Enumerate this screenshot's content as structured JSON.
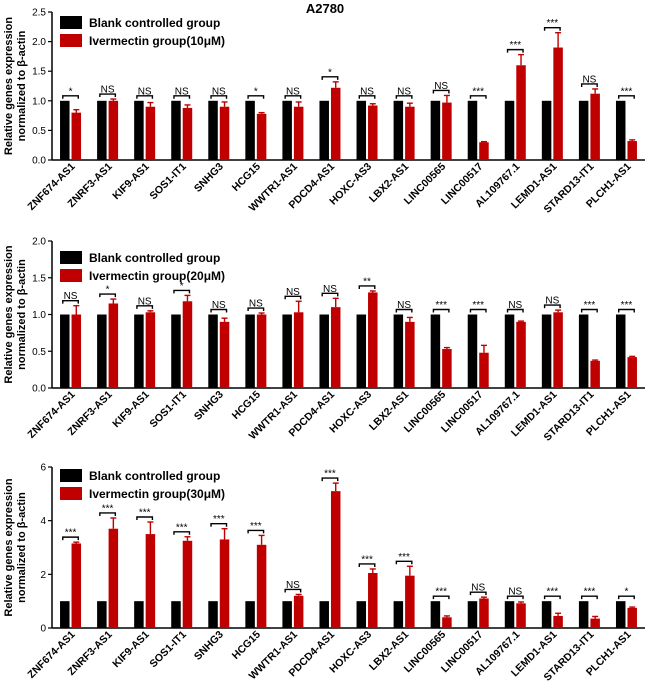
{
  "figure_title": "A2780",
  "colors": {
    "control": "#000000",
    "treated": "#c00000"
  },
  "chart_data": [
    {
      "type": "bar",
      "ylabel": [
        "Relative genes expression",
        "normalized to β-actin"
      ],
      "ylim": [
        0,
        2.5
      ],
      "yticks": [
        "0.0",
        "0.5",
        "1.0",
        "1.5",
        "2.0",
        "2.5"
      ],
      "ytick_values": [
        0,
        0.5,
        1.0,
        1.5,
        2.0,
        2.5
      ],
      "legend": "top-left",
      "categories": [
        "ZNF674-AS1",
        "ZNRF3-AS1",
        "KIF9-AS1",
        "SOS1-IT1",
        "SNHG3",
        "HCG15",
        "WWTR1-AS1",
        "PDCD4-AS1",
        "HOXC-AS3",
        "LBX2-AS1",
        "LINC00565",
        "LINC00517",
        "AL109767.1",
        "LEMD1-AS1",
        "STARD13-IT1",
        "PLCH1-AS1"
      ],
      "series": [
        {
          "name": "Blank controlled group",
          "values": [
            1,
            1,
            1,
            1,
            1,
            1,
            1,
            1,
            1,
            1,
            1,
            1,
            1,
            1,
            1,
            1
          ],
          "errors": [
            0,
            0,
            0,
            0,
            0,
            0,
            0,
            0,
            0,
            0,
            0,
            0,
            0,
            0,
            0,
            0
          ]
        },
        {
          "name": "Ivermectin group(10μM)",
          "values": [
            0.8,
            1.0,
            0.9,
            0.88,
            0.9,
            0.78,
            0.9,
            1.22,
            0.92,
            0.9,
            0.97,
            0.3,
            1.6,
            1.9,
            1.12,
            0.32
          ],
          "errors": [
            0.05,
            0.03,
            0.07,
            0.05,
            0.08,
            0.02,
            0.08,
            0.1,
            0.03,
            0.06,
            0.12,
            0.01,
            0.18,
            0.25,
            0.08,
            0.02
          ]
        }
      ],
      "significance": [
        "*",
        "NS",
        "NS",
        "NS",
        "NS",
        "*",
        "NS",
        "*",
        "NS",
        "NS",
        "NS",
        "***",
        "***",
        "***",
        "NS",
        "***"
      ]
    },
    {
      "type": "bar",
      "ylabel": [
        "Relative genes expression",
        "normalized to β-actin"
      ],
      "ylim": [
        0,
        2.0
      ],
      "yticks": [
        "0.0",
        "0.5",
        "1.0",
        "1.5",
        "2.0"
      ],
      "ytick_values": [
        0,
        0.5,
        1.0,
        1.5,
        2.0
      ],
      "legend": "top-left",
      "categories": [
        "ZNF674-AS1",
        "ZNRF3-AS1",
        "KIF9-AS1",
        "SOS1-IT1",
        "SNHG3",
        "HCG15",
        "WWTR1-AS1",
        "PDCD4-AS1",
        "HOXC-AS3",
        "LBX2-AS1",
        "LINC00565",
        "LINC00517",
        "AL109767.1",
        "LEMD1-AS1",
        "STARD13-IT1",
        "PLCH1-AS1"
      ],
      "series": [
        {
          "name": "Blank controlled group",
          "values": [
            1,
            1,
            1,
            1,
            1,
            1,
            1,
            1,
            1,
            1,
            1,
            1,
            1,
            1,
            1,
            1
          ],
          "errors": [
            0,
            0,
            0,
            0,
            0,
            0,
            0,
            0,
            0,
            0,
            0,
            0,
            0,
            0,
            0,
            0
          ]
        },
        {
          "name": "Ivermectin group(20μM)",
          "values": [
            1.0,
            1.15,
            1.03,
            1.18,
            0.9,
            1.0,
            1.03,
            1.1,
            1.3,
            0.9,
            0.53,
            0.48,
            0.9,
            1.03,
            0.37,
            0.42
          ],
          "errors": [
            0.12,
            0.06,
            0.02,
            0.08,
            0.05,
            0.02,
            0.15,
            0.12,
            0.02,
            0.06,
            0.02,
            0.1,
            0.01,
            0.03,
            0.01,
            0.01
          ]
        }
      ],
      "significance": [
        "NS",
        "*",
        "NS",
        "*",
        "NS",
        "NS",
        "NS",
        "NS",
        "**",
        "NS",
        "***",
        "***",
        "NS",
        "NS",
        "***",
        "***"
      ]
    },
    {
      "type": "bar",
      "ylabel": [
        "Relative genes expression",
        "normalized to β-actin"
      ],
      "ylim": [
        0,
        6
      ],
      "yticks": [
        "0",
        "2",
        "4",
        "6"
      ],
      "ytick_values": [
        0,
        2,
        4,
        6
      ],
      "legend": "top-left",
      "categories": [
        "ZNF674-AS1",
        "ZNRF3-AS1",
        "KIF9-AS1",
        "SOS1-IT1",
        "SNHG3",
        "HCG15",
        "WWTR1-AS1",
        "PDCD4-AS1",
        "HOXC-AS3",
        "LBX2-AS1",
        "LINC00565",
        "LINC00517",
        "AL109767.1",
        "LEMD1-AS1",
        "STARD13-IT1",
        "PLCH1-AS1"
      ],
      "series": [
        {
          "name": "Blank controlled group",
          "values": [
            1,
            1,
            1,
            1,
            1,
            1,
            1,
            1,
            1,
            1,
            1,
            1,
            1,
            1,
            1,
            1
          ],
          "errors": [
            0,
            0,
            0,
            0,
            0,
            0,
            0,
            0,
            0,
            0,
            0,
            0,
            0,
            0,
            0,
            0
          ]
        },
        {
          "name": "Ivermectin group(30μM)",
          "values": [
            3.15,
            3.7,
            3.5,
            3.25,
            3.3,
            3.1,
            1.2,
            5.1,
            2.05,
            1.95,
            0.4,
            1.1,
            0.92,
            0.45,
            0.35,
            0.75
          ],
          "errors": [
            0.05,
            0.4,
            0.45,
            0.15,
            0.4,
            0.35,
            0.05,
            0.3,
            0.15,
            0.35,
            0.05,
            0.05,
            0.05,
            0.1,
            0.08,
            0.03
          ]
        }
      ],
      "significance": [
        "***",
        "***",
        "***",
        "***",
        "***",
        "***",
        "NS",
        "***",
        "***",
        "***",
        "***",
        "NS",
        "NS",
        "***",
        "***",
        "*"
      ]
    }
  ]
}
